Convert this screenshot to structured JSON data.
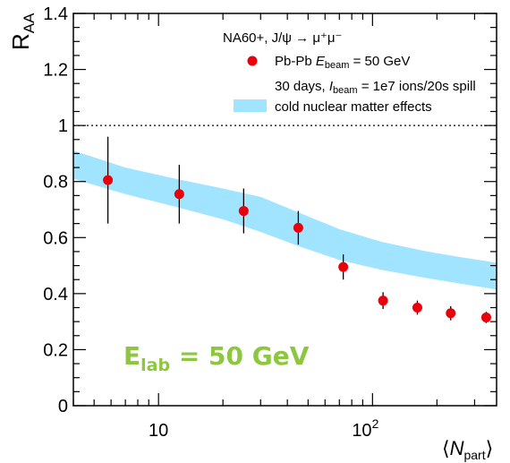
{
  "chart_data": {
    "type": "scatter",
    "title": "",
    "xlabel": "⟨N_part⟩",
    "ylabel": "R_AA",
    "x_scale": "log",
    "xlim": [
      4,
      380
    ],
    "ylim": [
      0,
      1.4
    ],
    "x_ticks_major": [
      10,
      100
    ],
    "x_tick_labels": [
      "10",
      "10",
      "2"
    ],
    "y_ticks": [
      0,
      0.2,
      0.4,
      0.6,
      0.8,
      1,
      1.2,
      1.4
    ],
    "y_tick_labels": [
      "0",
      "0.2",
      "0.4",
      "0.6",
      "0.8",
      "1",
      "1.2",
      "1.4"
    ],
    "reference_line": {
      "y": 1,
      "style": "dotted"
    },
    "series": [
      {
        "name": "Pb-Pb E_beam = 50 GeV",
        "kind": "points",
        "color": "#e8000b",
        "x": [
          5.8,
          12.5,
          25,
          45,
          73,
          112,
          162,
          232,
          340
        ],
        "y": [
          0.805,
          0.755,
          0.695,
          0.635,
          0.495,
          0.375,
          0.35,
          0.33,
          0.315
        ],
        "y_err": [
          0.155,
          0.105,
          0.08,
          0.06,
          0.045,
          0.03,
          0.025,
          0.025,
          0.02
        ]
      },
      {
        "name": "cold nuclear matter effects",
        "kind": "band",
        "color": "#a0e4ff",
        "x": [
          4,
          7,
          12,
          20,
          30,
          45,
          70,
          110,
          180,
          260,
          380
        ],
        "y_low": [
          0.81,
          0.755,
          0.71,
          0.665,
          0.62,
          0.57,
          0.52,
          0.485,
          0.455,
          0.435,
          0.415
        ],
        "y_high": [
          0.91,
          0.85,
          0.81,
          0.775,
          0.745,
          0.69,
          0.63,
          0.585,
          0.55,
          0.53,
          0.51
        ]
      }
    ],
    "legend": {
      "position": "top-right",
      "header": "NA60+, J/ψ → μ⁺μ⁻",
      "entries": [
        {
          "marker": "point",
          "label_parts": [
            "Pb-Pb ",
            "E",
            "beam",
            " = 50 GeV"
          ]
        },
        {
          "marker": "none",
          "label_parts": [
            "30 days, ",
            "I",
            "beam",
            " = 1e7 ions/20s spill"
          ]
        },
        {
          "marker": "band",
          "label_parts": [
            "cold nuclear matter effects"
          ]
        }
      ]
    },
    "annotation": {
      "label_parts": [
        "E",
        "lab",
        " = 50 GeV"
      ],
      "color": "#8dc63f"
    },
    "axis_title_parts": {
      "y": [
        "R",
        "AA"
      ],
      "x": [
        "⟨",
        "N",
        "part",
        "⟩"
      ]
    }
  }
}
